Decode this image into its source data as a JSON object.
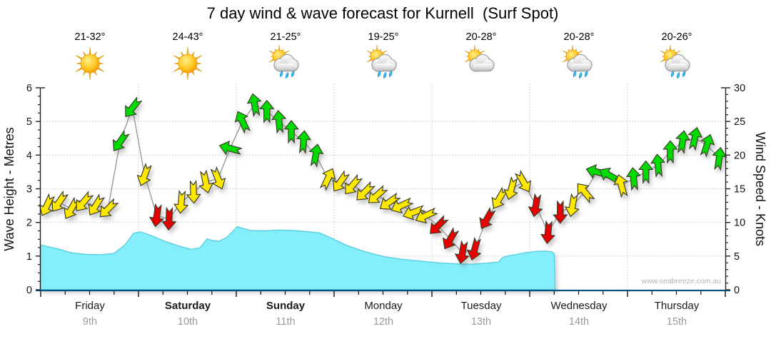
{
  "title": "7 day wind & wave forecast for Kurnell  (Surf Spot)",
  "watermark": "www.seabreeze.com.au",
  "days": [
    {
      "name": "Friday",
      "date": "9th",
      "temp": "21-32°",
      "icon": "sunny",
      "bold": false
    },
    {
      "name": "Saturday",
      "date": "10th",
      "temp": "24-43°",
      "icon": "sunny",
      "bold": true
    },
    {
      "name": "Sunday",
      "date": "11th",
      "temp": "21-25°",
      "icon": "rain-showers",
      "bold": true
    },
    {
      "name": "Monday",
      "date": "12th",
      "temp": "19-25°",
      "icon": "rain-showers",
      "bold": false
    },
    {
      "name": "Tuesday",
      "date": "13th",
      "temp": "20-28°",
      "icon": "partly-cloudy",
      "bold": false
    },
    {
      "name": "Wednesday",
      "date": "14th",
      "temp": "20-28°",
      "icon": "rain-showers",
      "bold": false
    },
    {
      "name": "Thursday",
      "date": "15th",
      "temp": "20-26°",
      "icon": "rain-showers",
      "bold": false
    }
  ],
  "chart_data": {
    "type": "area",
    "title": "7 day wind & wave forecast for Kurnell  (Surf Spot)",
    "left_axis": {
      "label": "Wave Height - Metres",
      "min": 0,
      "max": 6,
      "major_step": 1,
      "minor_step": 0.25
    },
    "right_axis": {
      "label": "Wind Speed - Knots",
      "min": 0,
      "max": 30,
      "major_step": 5,
      "minor_step": 1
    },
    "x_axis": {
      "days": 7,
      "tick_minor_per_day": 4,
      "grid": "dotted"
    },
    "colors": {
      "wind_light": "#FFE800",
      "wind_moderate": "#00DC00",
      "wind_onshore": "#E80000",
      "arrow_outline": "#3c3c2a",
      "wave_fill": "#84EFFB",
      "wave_edge": "#59CFE3",
      "wind_line": "#999999",
      "grid": "#c8c8c8",
      "axis": "#222222",
      "bottom_axis": "#00557F"
    },
    "wind_series": {
      "name": "Wind speed & direction (knots, arrow points downwind, 3-hourly)",
      "interval_hours": 3,
      "color_key": {
        "y": "wind_light",
        "g": "wind_moderate",
        "r": "wind_onshore"
      },
      "points": [
        [
          12.5,
          205,
          "y"
        ],
        [
          13,
          215,
          "y"
        ],
        [
          12,
          210,
          "y"
        ],
        [
          13,
          220,
          "y"
        ],
        [
          12.5,
          212,
          "y"
        ],
        [
          12,
          225,
          "y"
        ],
        [
          22,
          215,
          "g"
        ],
        [
          27,
          218,
          "g"
        ],
        [
          17,
          200,
          "y"
        ],
        [
          11,
          188,
          "r"
        ],
        [
          10.5,
          182,
          "r"
        ],
        [
          13,
          185,
          "y"
        ],
        [
          14.5,
          178,
          "y"
        ],
        [
          16,
          168,
          "y"
        ],
        [
          16.5,
          158,
          "y"
        ],
        [
          21,
          285,
          "g"
        ],
        [
          25,
          335,
          "g"
        ],
        [
          27.5,
          350,
          "g"
        ],
        [
          26.5,
          0,
          "g"
        ],
        [
          25,
          355,
          "g"
        ],
        [
          23.5,
          0,
          "g"
        ],
        [
          22,
          5,
          "g"
        ],
        [
          20,
          10,
          "g"
        ],
        [
          16.5,
          25,
          "y"
        ],
        [
          16,
          215,
          "y"
        ],
        [
          15.5,
          220,
          "y"
        ],
        [
          14.5,
          225,
          "y"
        ],
        [
          14,
          228,
          "y"
        ],
        [
          13,
          235,
          "y"
        ],
        [
          12.5,
          245,
          "y"
        ],
        [
          11.5,
          250,
          "y"
        ],
        [
          11,
          245,
          "y"
        ],
        [
          9.5,
          225,
          "r"
        ],
        [
          7.5,
          210,
          "r"
        ],
        [
          5.5,
          190,
          "r"
        ],
        [
          6,
          195,
          "r"
        ],
        [
          10.5,
          210,
          "r"
        ],
        [
          13.5,
          210,
          "y"
        ],
        [
          15,
          195,
          "y"
        ],
        [
          16,
          150,
          "y"
        ],
        [
          12.5,
          190,
          "r"
        ],
        [
          8.5,
          185,
          "r"
        ],
        [
          11.5,
          180,
          "r"
        ],
        [
          12.5,
          190,
          "y"
        ],
        [
          14.5,
          320,
          "y"
        ],
        [
          17.5,
          285,
          "g"
        ],
        [
          17,
          300,
          "g"
        ],
        [
          15.5,
          345,
          "y"
        ],
        [
          16.5,
          355,
          "g"
        ],
        [
          17.5,
          0,
          "g"
        ],
        [
          18.5,
          355,
          "g"
        ],
        [
          20.5,
          0,
          "g"
        ],
        [
          22,
          8,
          "g"
        ],
        [
          22.5,
          12,
          "g"
        ],
        [
          21.5,
          18,
          "g"
        ],
        [
          19.5,
          8,
          "g"
        ]
      ]
    },
    "wave_series": {
      "name": "Wave height (metres) vs time (days from start)",
      "points": [
        [
          0,
          1.33
        ],
        [
          0.17,
          1.22
        ],
        [
          0.31,
          1.1
        ],
        [
          0.46,
          1.05
        ],
        [
          0.61,
          1.04
        ],
        [
          0.75,
          1.08
        ],
        [
          0.86,
          1.33
        ],
        [
          0.95,
          1.68
        ],
        [
          1.02,
          1.72
        ],
        [
          1.12,
          1.62
        ],
        [
          1.26,
          1.45
        ],
        [
          1.41,
          1.3
        ],
        [
          1.54,
          1.2
        ],
        [
          1.63,
          1.25
        ],
        [
          1.7,
          1.51
        ],
        [
          1.76,
          1.46
        ],
        [
          1.82,
          1.44
        ],
        [
          1.9,
          1.55
        ],
        [
          1.96,
          1.72
        ],
        [
          2.01,
          1.87
        ],
        [
          2.07,
          1.82
        ],
        [
          2.15,
          1.76
        ],
        [
          2.28,
          1.75
        ],
        [
          2.43,
          1.77
        ],
        [
          2.58,
          1.76
        ],
        [
          2.72,
          1.73
        ],
        [
          2.85,
          1.69
        ],
        [
          2.98,
          1.52
        ],
        [
          3.12,
          1.33
        ],
        [
          3.27,
          1.17
        ],
        [
          3.42,
          1.05
        ],
        [
          3.53,
          0.97
        ],
        [
          3.71,
          0.9
        ],
        [
          3.89,
          0.85
        ],
        [
          4.07,
          0.8
        ],
        [
          4.26,
          0.77
        ],
        [
          4.42,
          0.76
        ],
        [
          4.56,
          0.79
        ],
        [
          4.68,
          0.82
        ],
        [
          4.72,
          0.95
        ],
        [
          4.77,
          1.0
        ],
        [
          4.85,
          1.04
        ],
        [
          4.96,
          1.1
        ],
        [
          5.07,
          1.14
        ],
        [
          5.16,
          1.15
        ],
        [
          5.22,
          1.13
        ],
        [
          5.25,
          1.08
        ],
        [
          5.26,
          0.0
        ]
      ]
    }
  }
}
